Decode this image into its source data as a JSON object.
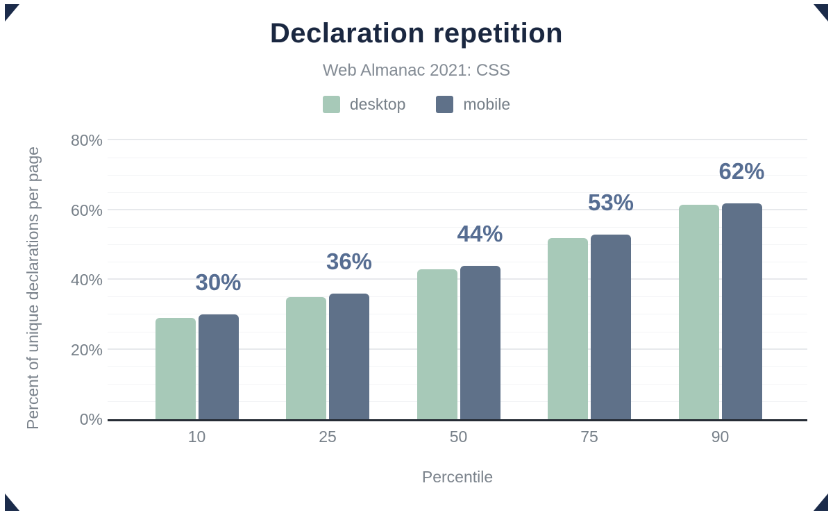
{
  "chart_data": {
    "type": "bar",
    "title": "Declaration repetition",
    "subtitle": "Web Almanac 2021: CSS",
    "categories": [
      "10",
      "25",
      "50",
      "75",
      "90"
    ],
    "series": [
      {
        "name": "desktop",
        "color": "#a7c9b8",
        "values": [
          29,
          35,
          43,
          52,
          61.5
        ]
      },
      {
        "name": "mobile",
        "color": "#5f7189",
        "values": [
          30,
          36,
          44,
          53,
          62
        ]
      }
    ],
    "data_labels": [
      "30%",
      "36%",
      "44%",
      "53%",
      "62%"
    ],
    "data_label_series": "mobile",
    "xlabel": "Percentile",
    "ylabel": "Percent of unique declarations per page",
    "ylim": [
      0,
      80
    ],
    "y_ticks": [
      {
        "label": "0%",
        "value": 0
      },
      {
        "label": "20%",
        "value": 20
      },
      {
        "label": "40%",
        "value": 40
      },
      {
        "label": "60%",
        "value": 60
      },
      {
        "label": "80%",
        "value": 80
      }
    ],
    "y_minor_step": 5,
    "grid": true,
    "legend_position": "top"
  },
  "colors": {
    "background": "#ffffff",
    "title": "#1a2740",
    "subtitle": "#838b94",
    "tick_text": "#767f88",
    "axis_title_text": "#7a828b",
    "desktop_bar": "#a7c9b8",
    "mobile_bar": "#5f7189",
    "data_label": "#566d92",
    "axis_line": "#262c35",
    "grid_major": "#e7e9ec",
    "grid_minor": "#f3f4f6",
    "corner_mark": "#1b2b4a"
  }
}
